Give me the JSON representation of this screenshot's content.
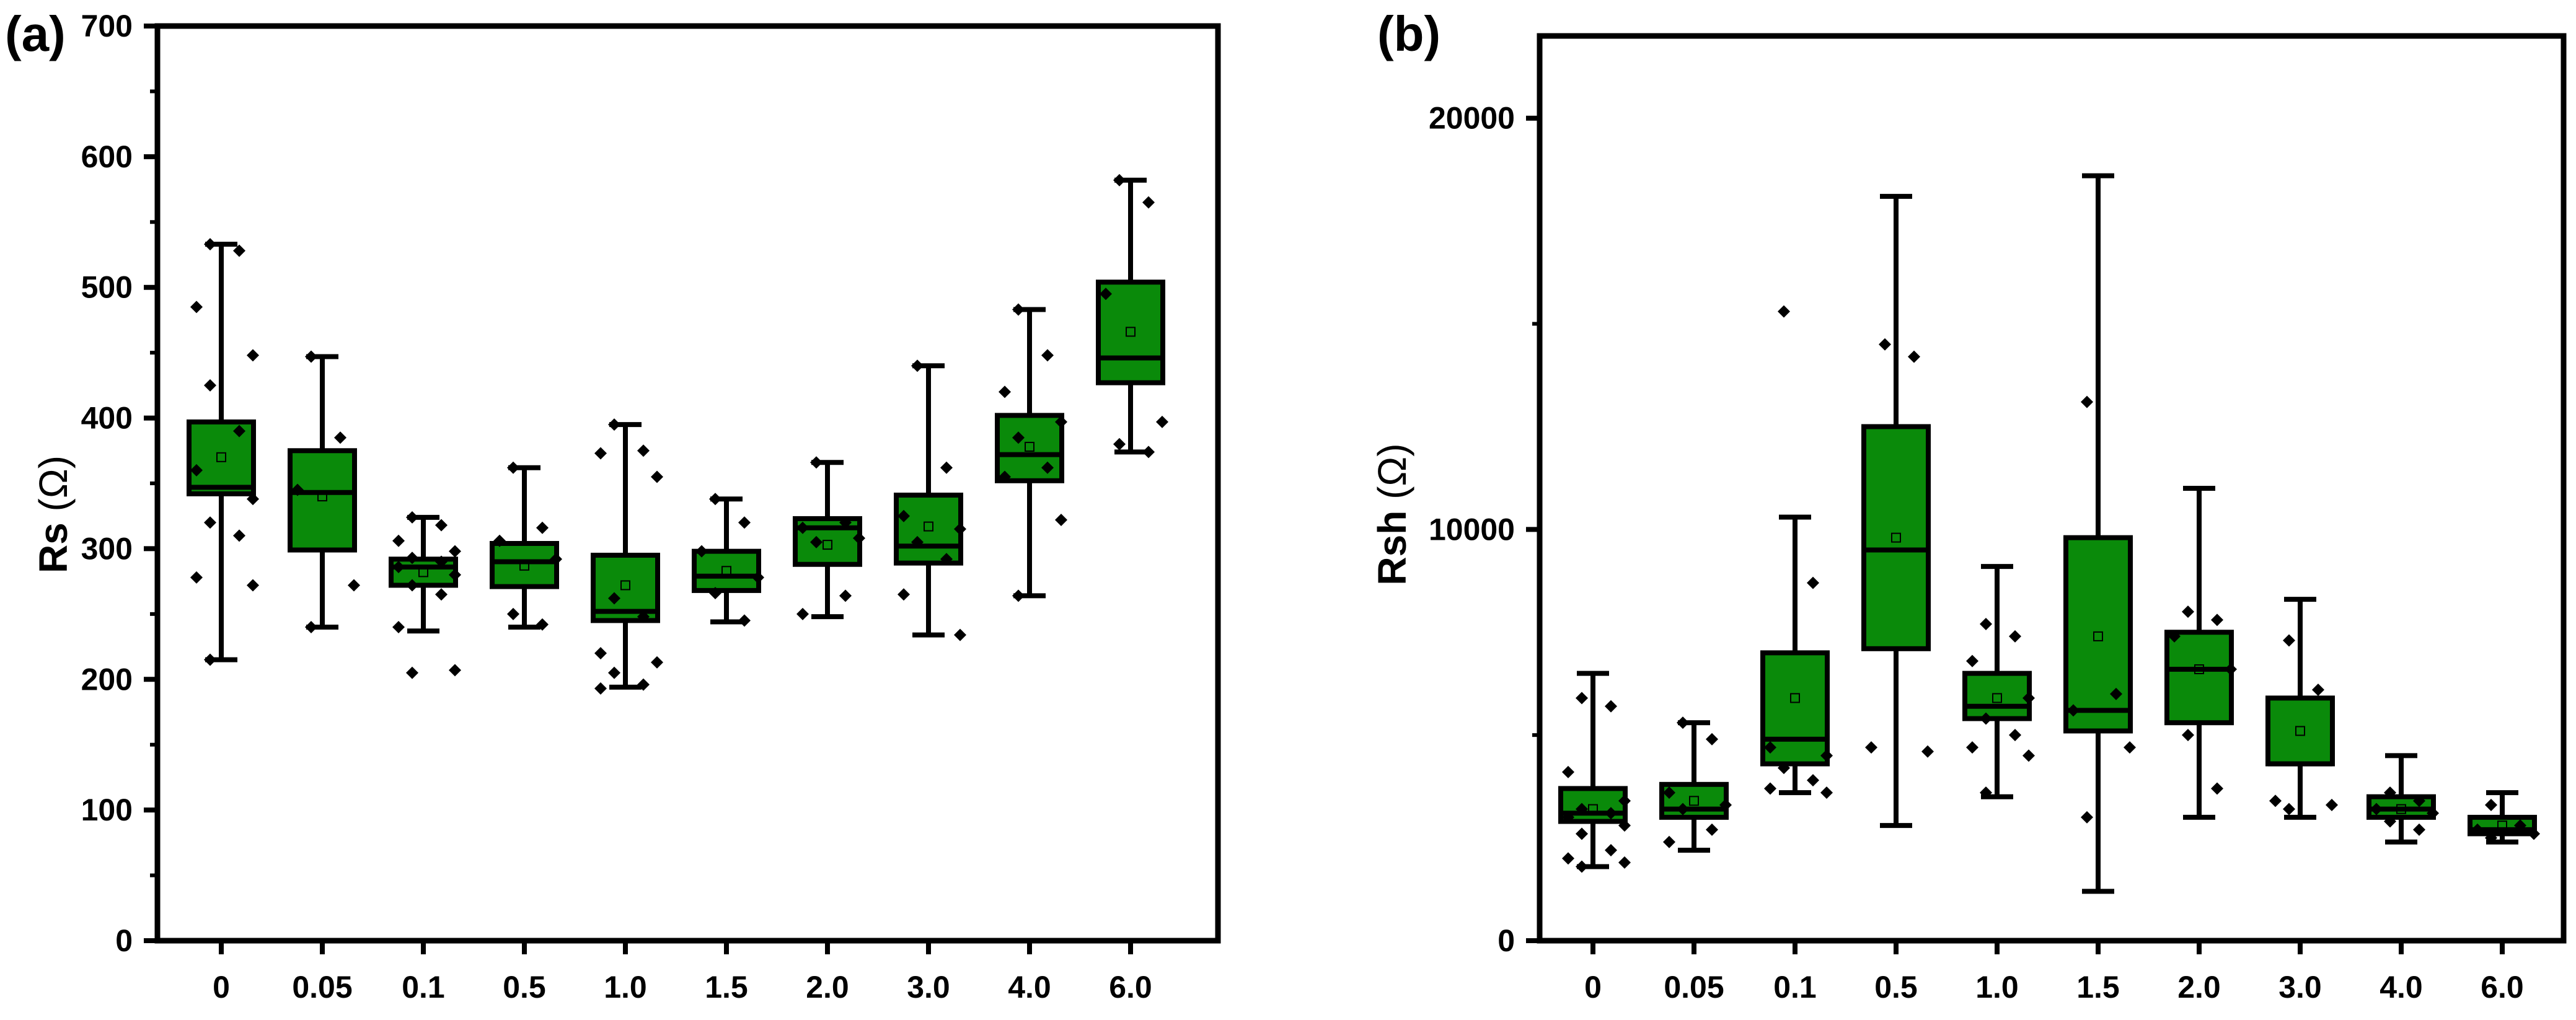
{
  "chart_data": [
    {
      "panel": "(a)",
      "type": "box",
      "title": "",
      "xlabel": "",
      "ylabel_text": "Rs",
      "ylabel_unit": "(Ω)",
      "ylim": [
        0,
        700
      ],
      "yticks": [
        0,
        100,
        200,
        300,
        400,
        500,
        600,
        700
      ],
      "categories": [
        "0",
        "0.05",
        "0.1",
        "0.5",
        "1.0",
        "1.5",
        "2.0",
        "3.0",
        "4.0",
        "6.0"
      ],
      "colors": {
        "box_fill": "#0a8a0a",
        "line": "#000000",
        "background": "#ffffff"
      },
      "boxes": [
        {
          "min": 215,
          "q1": 342,
          "median": 347,
          "q3": 397,
          "max": 533,
          "mean": 370,
          "points": [
            533,
            528,
            485,
            448,
            425,
            390,
            360,
            338,
            320,
            310,
            278,
            272,
            215
          ]
        },
        {
          "min": 240,
          "q1": 299,
          "median": 343,
          "q3": 375,
          "max": 447,
          "mean": 340,
          "points": [
            447,
            385,
            345,
            272,
            240
          ]
        },
        {
          "min": 237,
          "q1": 272,
          "median": 286,
          "q3": 292,
          "max": 324,
          "mean": 282,
          "points": [
            324,
            318,
            306,
            298,
            293,
            290,
            286,
            280,
            272,
            265,
            240,
            207,
            205
          ]
        },
        {
          "min": 240,
          "q1": 271,
          "median": 290,
          "q3": 304,
          "max": 362,
          "mean": 287,
          "points": [
            362,
            316,
            306,
            292,
            250,
            242
          ]
        },
        {
          "min": 194,
          "q1": 245,
          "median": 252,
          "q3": 295,
          "max": 395,
          "mean": 272,
          "points": [
            395,
            375,
            373,
            355,
            262,
            248,
            220,
            213,
            205,
            196,
            193
          ]
        },
        {
          "min": 244,
          "q1": 268,
          "median": 279,
          "q3": 298,
          "max": 338,
          "mean": 283,
          "points": [
            338,
            320,
            298,
            278,
            266,
            245
          ]
        },
        {
          "min": 248,
          "q1": 288,
          "median": 316,
          "q3": 323,
          "max": 366,
          "mean": 303,
          "points": [
            366,
            320,
            316,
            308,
            305,
            264,
            250
          ]
        },
        {
          "min": 234,
          "q1": 289,
          "median": 302,
          "q3": 341,
          "max": 440,
          "mean": 317,
          "points": [
            440,
            362,
            325,
            315,
            305,
            292,
            265,
            234
          ]
        },
        {
          "min": 264,
          "q1": 352,
          "median": 372,
          "q3": 402,
          "max": 483,
          "mean": 378,
          "points": [
            483,
            448,
            420,
            397,
            385,
            362,
            355,
            322,
            264
          ]
        },
        {
          "min": 374,
          "q1": 427,
          "median": 446,
          "q3": 504,
          "max": 582,
          "mean": 466,
          "points": [
            582,
            565,
            495,
            397,
            380,
            374
          ]
        }
      ]
    },
    {
      "panel": "(b)",
      "type": "box",
      "title": "",
      "xlabel": "",
      "ylabel_text": "Rsh",
      "ylabel_unit": "(Ω)",
      "ylim": [
        0,
        22000
      ],
      "yticks": [
        0,
        10000,
        20000
      ],
      "categories": [
        "0",
        "0.05",
        "0.1",
        "0.5",
        "1.0",
        "1.5",
        "2.0",
        "3.0",
        "4.0",
        "6.0"
      ],
      "colors": {
        "box_fill": "#0a8a0a",
        "line": "#000000",
        "background": "#ffffff"
      },
      "boxes": [
        {
          "min": 1800,
          "q1": 2900,
          "median": 3100,
          "q3": 3700,
          "max": 6500,
          "mean": 3200,
          "points": [
            5900,
            5700,
            4100,
            3400,
            3200,
            3100,
            3000,
            2800,
            2600,
            2200,
            2000,
            1900,
            1800
          ]
        },
        {
          "min": 2200,
          "q1": 3000,
          "median": 3200,
          "q3": 3800,
          "max": 5300,
          "mean": 3400,
          "points": [
            5300,
            4900,
            3600,
            3300,
            3200,
            2700,
            2400
          ]
        },
        {
          "min": 3600,
          "q1": 4300,
          "median": 4900,
          "q3": 7000,
          "max": 10300,
          "mean": 5900,
          "points": [
            15300,
            8700,
            4700,
            4500,
            4200,
            3900,
            3700,
            3600
          ]
        },
        {
          "min": 2800,
          "q1": 7100,
          "median": 9500,
          "q3": 12500,
          "max": 18100,
          "mean": 9800,
          "points": [
            14500,
            14200,
            4700,
            4600
          ]
        },
        {
          "min": 3500,
          "q1": 5400,
          "median": 5700,
          "q3": 6500,
          "max": 9100,
          "mean": 5900,
          "points": [
            7700,
            7400,
            6800,
            5900,
            5400,
            5000,
            4700,
            4500,
            3600
          ]
        },
        {
          "min": 1200,
          "q1": 5100,
          "median": 5600,
          "q3": 9800,
          "max": 18600,
          "mean": 7400,
          "points": [
            13100,
            6000,
            5600,
            4700,
            3000
          ]
        },
        {
          "min": 3000,
          "q1": 5300,
          "median": 6600,
          "q3": 7500,
          "max": 11000,
          "mean": 6600,
          "points": [
            8000,
            7800,
            7400,
            6600,
            5000,
            3700
          ]
        },
        {
          "min": 3000,
          "q1": 4300,
          "median": 4300,
          "q3": 5900,
          "max": 8300,
          "mean": 5100,
          "points": [
            7300,
            6100,
            3400,
            3300,
            3200
          ]
        },
        {
          "min": 2400,
          "q1": 3000,
          "median": 3200,
          "q3": 3500,
          "max": 4500,
          "mean": 3200,
          "points": [
            3600,
            3400,
            3200,
            3100,
            2900,
            2700
          ]
        },
        {
          "min": 2400,
          "q1": 2600,
          "median": 2700,
          "q3": 3000,
          "max": 3600,
          "mean": 2800,
          "points": [
            3300,
            2800,
            2700,
            2600,
            2500
          ]
        }
      ]
    }
  ]
}
